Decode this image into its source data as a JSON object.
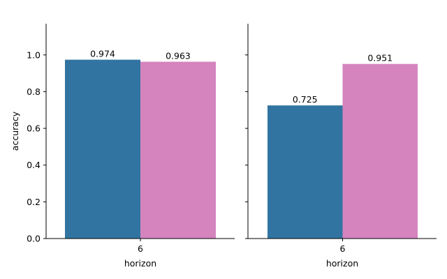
{
  "chart_data": [
    {
      "type": "bar",
      "categories": [
        "6"
      ],
      "series": [
        {
          "values": [
            0.974
          ],
          "color": "#3274a1"
        },
        {
          "values": [
            0.963
          ],
          "color": "#d584be"
        }
      ],
      "data_labels": [
        "0.974",
        "0.963"
      ],
      "xlabel": "horizon",
      "ylabel": "accuracy",
      "ylim": [
        0,
        1.17
      ],
      "yticks": [
        "0.0",
        "0.2",
        "0.4",
        "0.6",
        "0.8",
        "1.0"
      ],
      "yticks_values": [
        0,
        0.2,
        0.4,
        0.6,
        0.8,
        1.0
      ],
      "grid": false,
      "legend": "none"
    },
    {
      "type": "bar",
      "categories": [
        "6"
      ],
      "series": [
        {
          "values": [
            0.725
          ],
          "color": "#3274a1"
        },
        {
          "values": [
            0.951
          ],
          "color": "#d584be"
        }
      ],
      "data_labels": [
        "0.725",
        "0.951"
      ],
      "xlabel": "horizon",
      "ylabel": "",
      "ylim": [
        0,
        1.17
      ],
      "shared_y": true,
      "grid": false,
      "legend": "none"
    }
  ]
}
